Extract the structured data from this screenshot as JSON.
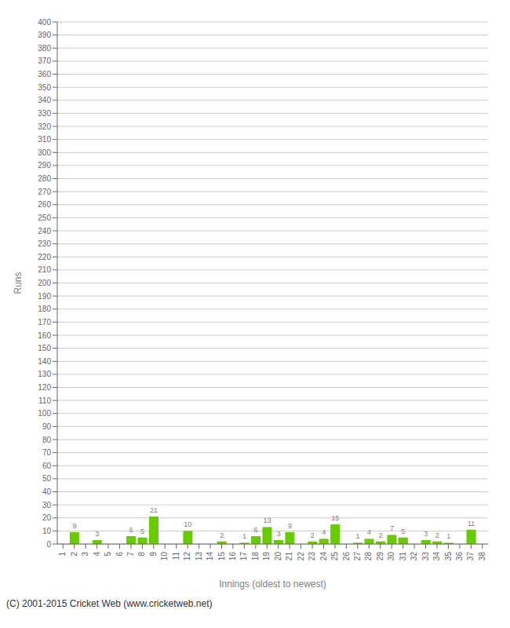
{
  "chart_data": {
    "type": "bar",
    "categories": [
      "1",
      "2",
      "3",
      "4",
      "5",
      "6",
      "7",
      "8",
      "9",
      "10",
      "11",
      "12",
      "13",
      "14",
      "15",
      "16",
      "17",
      "18",
      "19",
      "20",
      "21",
      "22",
      "23",
      "24",
      "25",
      "26",
      "27",
      "28",
      "29",
      "30",
      "31",
      "32",
      "33",
      "34",
      "35",
      "36",
      "37",
      "38"
    ],
    "values": [
      0,
      9,
      0,
      3,
      0,
      0,
      6,
      5,
      21,
      0,
      0,
      10,
      0,
      0,
      2,
      0,
      1,
      6,
      13,
      3,
      9,
      0,
      2,
      4,
      15,
      0,
      1,
      4,
      2,
      7,
      5,
      0,
      3,
      2,
      1,
      0,
      11,
      0
    ],
    "color": "#66cc00",
    "xlabel": "Innings (oldest to newest)",
    "ylabel": "Runs",
    "ylim": [
      0,
      400
    ],
    "yticks": [
      0,
      10,
      20,
      30,
      40,
      50,
      60,
      70,
      80,
      90,
      100,
      110,
      120,
      130,
      140,
      150,
      160,
      170,
      180,
      190,
      200,
      210,
      220,
      230,
      240,
      250,
      260,
      270,
      280,
      290,
      300,
      310,
      320,
      330,
      340,
      350,
      360,
      370,
      380,
      390,
      400
    ],
    "grid": true,
    "data_labels": true,
    "footer": "(C) 2001-2015 Cricket Web (www.cricketweb.net)"
  }
}
